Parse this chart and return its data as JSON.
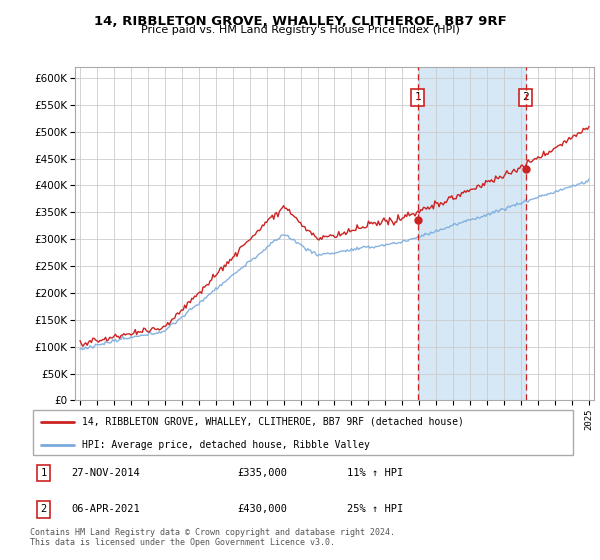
{
  "title1": "14, RIBBLETON GROVE, WHALLEY, CLITHEROE, BB7 9RF",
  "title2": "Price paid vs. HM Land Registry's House Price Index (HPI)",
  "legend_line1": "14, RIBBLETON GROVE, WHALLEY, CLITHEROE, BB7 9RF (detached house)",
  "legend_line2": "HPI: Average price, detached house, Ribble Valley",
  "transaction1_date": "27-NOV-2014",
  "transaction1_price": "£335,000",
  "transaction1_hpi": "11% ↑ HPI",
  "transaction2_date": "06-APR-2021",
  "transaction2_price": "£430,000",
  "transaction2_hpi": "25% ↑ HPI",
  "footer": "Contains HM Land Registry data © Crown copyright and database right 2024.\nThis data is licensed under the Open Government Licence v3.0.",
  "hpi_color": "#7aaadd",
  "price_color": "#cc2222",
  "shaded_color": "#d6e8f5",
  "background_color": "#ffffff",
  "grid_color": "#cccccc",
  "ylim_min": 0,
  "ylim_max": 620000,
  "x_start_year": 1995,
  "x_end_year": 2025,
  "transaction1_year": 2014.9,
  "transaction2_year": 2021.27,
  "transaction1_value": 335000,
  "transaction2_value": 430000
}
